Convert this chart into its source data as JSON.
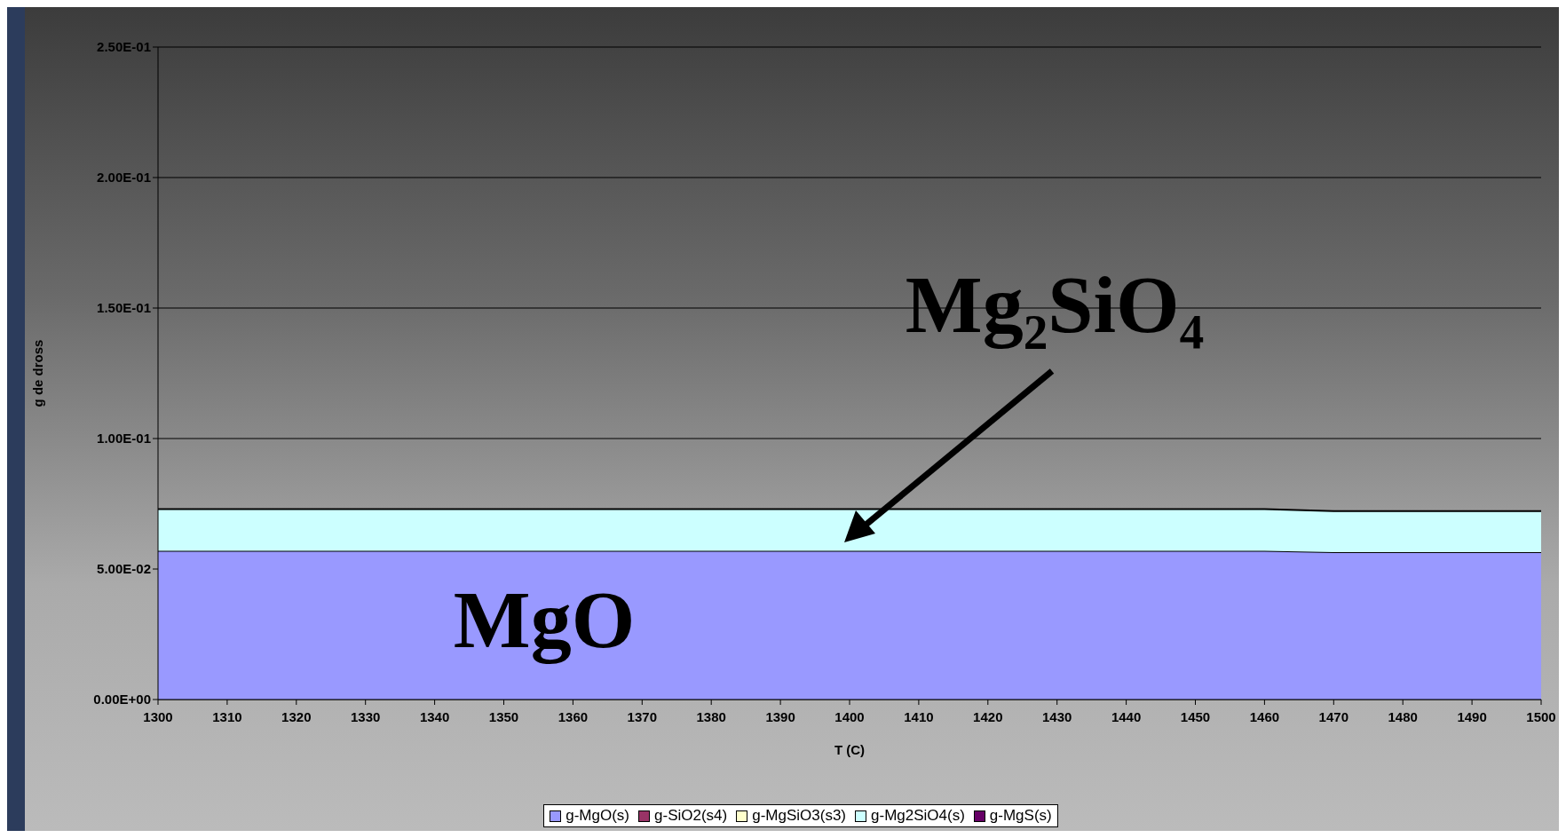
{
  "chart_data": {
    "type": "area",
    "stacked": true,
    "xlabel": "T (C)",
    "ylabel": "g de dross",
    "x": [
      1300,
      1310,
      1320,
      1330,
      1340,
      1350,
      1360,
      1370,
      1380,
      1390,
      1400,
      1410,
      1420,
      1430,
      1440,
      1450,
      1460,
      1470,
      1480,
      1490,
      1500
    ],
    "series": [
      {
        "name": "g-MgO(s)",
        "color": "#9999ff",
        "values": [
          0.057,
          0.057,
          0.057,
          0.057,
          0.057,
          0.057,
          0.057,
          0.057,
          0.057,
          0.057,
          0.057,
          0.057,
          0.057,
          0.057,
          0.057,
          0.057,
          0.057,
          0.0565,
          0.0565,
          0.0565,
          0.0565
        ]
      },
      {
        "name": "g-SiO2(s4)",
        "color": "#993366",
        "values": [
          null,
          null,
          null,
          null,
          null,
          null,
          null,
          null,
          null,
          null,
          null,
          null,
          null,
          null,
          null,
          null,
          null,
          null,
          null,
          null,
          null
        ]
      },
      {
        "name": "g-MgSiO3(s3)",
        "color": "#ffffcc",
        "values": [
          null,
          null,
          null,
          null,
          null,
          null,
          null,
          null,
          null,
          null,
          null,
          null,
          null,
          null,
          null,
          null,
          null,
          null,
          null,
          null,
          null
        ]
      },
      {
        "name": "g-Mg2SiO4(s)",
        "color": "#ccffff",
        "values": [
          0.016,
          0.016,
          0.016,
          0.016,
          0.016,
          0.016,
          0.016,
          0.016,
          0.016,
          0.016,
          0.016,
          0.016,
          0.016,
          0.016,
          0.016,
          0.016,
          0.016,
          0.0157,
          0.0157,
          0.0157,
          0.0157
        ]
      },
      {
        "name": "g-MgS(s)",
        "color": "#660066",
        "values": [
          null,
          null,
          null,
          null,
          null,
          null,
          null,
          null,
          null,
          null,
          null,
          null,
          null,
          null,
          null,
          null,
          null,
          null,
          null,
          null,
          null
        ]
      }
    ],
    "xlim": [
      1300,
      1500
    ],
    "xticks": [
      1300,
      1310,
      1320,
      1330,
      1340,
      1350,
      1360,
      1370,
      1380,
      1390,
      1400,
      1410,
      1420,
      1430,
      1440,
      1450,
      1460,
      1470,
      1480,
      1490,
      1500
    ],
    "ylim": [
      0,
      0.25
    ],
    "yticks": [
      {
        "value": 0,
        "label": "0.00E+00"
      },
      {
        "value": 0.05,
        "label": "5.00E-02"
      },
      {
        "value": 0.1,
        "label": "1.00E-01"
      },
      {
        "value": 0.15,
        "label": "1.50E-01"
      },
      {
        "value": 0.2,
        "label": "2.00E-01"
      },
      {
        "value": 0.25,
        "label": "2.50E-01"
      }
    ],
    "grid": "y",
    "legend": "bottom",
    "annotations": [
      "MgO",
      "Mg₂SiO₄"
    ]
  }
}
